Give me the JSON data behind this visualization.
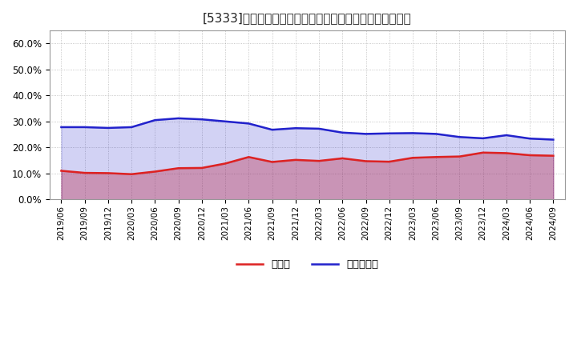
{
  "title": "[5333]　現頂金、有利子負債の総資産に対する比率の推移",
  "x_labels": [
    "2019/06",
    "2019/09",
    "2019/12",
    "2020/03",
    "2020/06",
    "2020/09",
    "2020/12",
    "2021/03",
    "2021/06",
    "2021/09",
    "2021/12",
    "2022/03",
    "2022/06",
    "2022/09",
    "2022/12",
    "2023/03",
    "2023/06",
    "2023/09",
    "2023/12",
    "2024/03",
    "2024/06",
    "2024/09"
  ],
  "cash": [
    0.11,
    0.102,
    0.101,
    0.097,
    0.107,
    0.12,
    0.121,
    0.138,
    0.163,
    0.144,
    0.152,
    0.148,
    0.158,
    0.147,
    0.145,
    0.16,
    0.163,
    0.165,
    0.18,
    0.178,
    0.17,
    0.168
  ],
  "debt": [
    0.278,
    0.278,
    0.275,
    0.278,
    0.305,
    0.312,
    0.308,
    0.3,
    0.292,
    0.268,
    0.274,
    0.272,
    0.257,
    0.252,
    0.254,
    0.255,
    0.252,
    0.24,
    0.235,
    0.247,
    0.234,
    0.23
  ],
  "cash_color": "#dd2222",
  "debt_color": "#2222cc",
  "bg_color": "#ffffff",
  "plot_bg_color": "#ffffff",
  "grid_color": "#999999",
  "title_fontsize": 11,
  "legend_cash": "現頂金",
  "legend_debt": "有利子負債",
  "ylim": [
    0.0,
    0.65
  ],
  "yticks": [
    0.0,
    0.1,
    0.2,
    0.3,
    0.4,
    0.5,
    0.6
  ]
}
